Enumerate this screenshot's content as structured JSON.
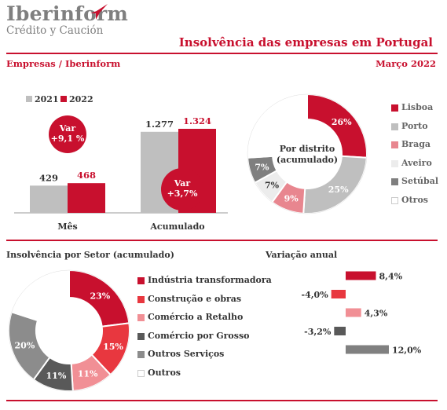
{
  "header": {
    "logo_name": "Iberinform",
    "logo_tagline": "Crédito y Caución",
    "title": "Insolvência das empresas em Portugal",
    "section_label": "Empresas / Iberinform",
    "date": "Março 2022"
  },
  "colors": {
    "accent": "#c8102e",
    "gray": "#bfbfbf",
    "dark_gray": "#808080"
  },
  "bar_chart": {
    "legend": [
      "2021",
      "2022"
    ],
    "callouts": [
      {
        "label": "Var",
        "value": "+9,1 %"
      },
      {
        "label": "Var",
        "value": "+3,7%"
      }
    ]
  },
  "district_chart": {
    "center_label_1": "Por distrito",
    "center_label_2": "(acumulado)",
    "legend": [
      "Lisboa",
      "Porto",
      "Braga",
      "Aveiro",
      "Setúbal",
      "Otros"
    ]
  },
  "sector_section": {
    "title": "Insolvência por Setor (acumulado)",
    "legend": [
      "Indústria transformadora",
      "Construção e obras",
      "Comércio a Retalho",
      "Comércio por Grosso",
      "Outros Serviços",
      "Outros"
    ]
  },
  "variation_section": {
    "title": "Variação anual"
  },
  "chart_data": [
    {
      "type": "bar",
      "categories": [
        "Mês",
        "Acumulado"
      ],
      "series": [
        {
          "name": "2021",
          "values": [
            429,
            1277
          ],
          "labels": [
            "429",
            "1.277"
          ]
        },
        {
          "name": "2022",
          "values": [
            468,
            1324
          ],
          "labels": [
            "468",
            "1.324"
          ]
        }
      ],
      "ylim": [
        0,
        1324
      ]
    },
    {
      "type": "pie",
      "labels": [
        "Lisboa",
        "Porto",
        "Braga",
        "Aveiro",
        "Setúbal",
        "Otros"
      ],
      "values": [
        26,
        25,
        9,
        7,
        7,
        26
      ],
      "value_labels": [
        "26%",
        "25%",
        "9%",
        "7%",
        "7%",
        ""
      ],
      "colors": [
        "#c8102e",
        "#bfbfbf",
        "#e8868f",
        "#ececec",
        "#7f7f7f",
        "#ffffff"
      ]
    },
    {
      "type": "pie",
      "labels": [
        "Indústria transformadora",
        "Construção e obras",
        "Comércio a Retalho",
        "Comércio por Grosso",
        "Outros Serviços",
        "Outros"
      ],
      "values": [
        23,
        15,
        11,
        11,
        20,
        20
      ],
      "value_labels": [
        "23%",
        "15%",
        "11%",
        "11%",
        "20%",
        ""
      ],
      "colors": [
        "#c8102e",
        "#e8373f",
        "#f18f95",
        "#595959",
        "#8c8c8c",
        "#ffffff"
      ]
    },
    {
      "type": "bar",
      "orientation": "horizontal",
      "categories": [
        "Indústria transformadora",
        "Construção e obras",
        "Comércio a Retalho",
        "Comércio por Grosso",
        "Outros Serviços"
      ],
      "values": [
        8.4,
        -4.0,
        4.3,
        -3.2,
        12.0
      ],
      "value_labels": [
        "8,4%",
        "-4,0%",
        "4,3%",
        "-3,2%",
        "12,0%"
      ],
      "colors": [
        "#c8102e",
        "#e8373f",
        "#f18f95",
        "#595959",
        "#808080"
      ]
    }
  ]
}
